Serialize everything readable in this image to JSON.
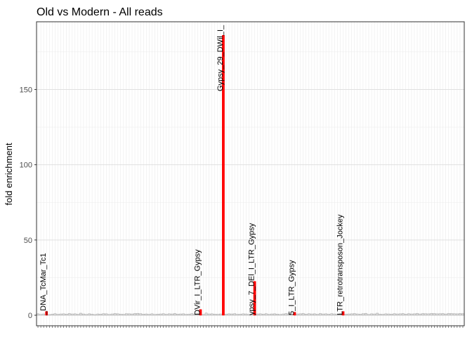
{
  "chart_data": {
    "type": "bar",
    "title": "Old vs Modern - All reads",
    "y_label": "fold enrichment",
    "categories": [
      null,
      null,
      null,
      null,
      null,
      null,
      null,
      null,
      null,
      null,
      null,
      null,
      null,
      null,
      null,
      null,
      null,
      null,
      null,
      null,
      null,
      null,
      null,
      null,
      null,
      null,
      null,
      null,
      null,
      null,
      null,
      null,
      null,
      null,
      null,
      null,
      null,
      null,
      null,
      null,
      null,
      null,
      null,
      null,
      null,
      null,
      null,
      null,
      null,
      null,
      null,
      null,
      null,
      null,
      null,
      null,
      null,
      null,
      null,
      null,
      null,
      null,
      null,
      null,
      null,
      null,
      null,
      null,
      null,
      null,
      null,
      null,
      null,
      null,
      null,
      null,
      null,
      null,
      null,
      null,
      null,
      null,
      null,
      null,
      null,
      null,
      null,
      null,
      null,
      null,
      null,
      null,
      null,
      null,
      null,
      null,
      null,
      null,
      null,
      null,
      null,
      null,
      null,
      null,
      null,
      null,
      null,
      null,
      null,
      null,
      null,
      null,
      null,
      null,
      null,
      null,
      null,
      null,
      null,
      null,
      null,
      null,
      null,
      null,
      null,
      null,
      null,
      null,
      null,
      null,
      null,
      null,
      null,
      null,
      null,
      null,
      null,
      null,
      null,
      null,
      null,
      null,
      null,
      null,
      null,
      null,
      null,
      null,
      null,
      null
    ],
    "values": [
      1.0,
      0.6,
      0.9,
      2.5,
      0.5,
      0.8,
      1.1,
      0.7,
      0.9,
      1.0,
      0.8,
      1.2,
      0.9,
      1.0,
      0.7,
      1.4,
      0.9,
      0.6,
      1.0,
      0.8,
      0.5,
      0.9,
      0.8,
      1.1,
      1.0,
      0.6,
      0.9,
      1.2,
      1.0,
      0.8,
      0.7,
      1.1,
      1.0,
      0.9,
      1.2,
      1.3,
      1.1,
      0.8,
      0.9,
      0.7,
      1.0,
      0.6,
      0.8,
      0.9,
      1.1,
      0.7,
      1.0,
      0.9,
      1.2,
      0.8,
      0.9,
      1.0,
      0.7,
      0.8,
      1.1,
      0.9,
      1.0,
      3.8,
      0.6,
      1.5,
      0.9,
      1.0,
      0.8,
      0.7,
      0.9,
      186,
      0.8,
      1.0,
      0.9,
      1.1,
      0.7,
      0.8,
      1.0,
      0.9,
      0.6,
      0.8,
      22.5,
      0.9,
      1.0,
      0.8,
      1.1,
      0.7,
      0.9,
      1.0,
      0.8,
      0.6,
      0.9,
      1.2,
      1.0,
      0.8,
      2.0,
      0.9,
      1.0,
      1.3,
      0.8,
      1.1,
      0.9,
      1.0,
      0.7,
      1.2,
      0.9,
      1.0,
      0.8,
      1.1,
      0.9,
      0.7,
      1.0,
      2.5,
      0.8,
      0.9,
      1.0,
      1.2,
      0.9,
      0.8,
      1.1,
      1.3,
      0.6,
      1.0,
      0.9,
      1.4,
      0.8,
      0.7,
      1.0,
      0.9,
      0.8,
      1.1,
      0.9,
      1.0,
      1.2,
      0.8,
      1.1,
      0.9,
      1.0,
      1.3,
      0.9,
      1.2,
      1.1,
      1.0,
      1.3,
      1.2,
      1.0,
      1.1,
      1.2,
      0.9,
      1.3,
      1.2,
      1.1,
      1.0,
      1.2,
      1.1
    ],
    "bar_labels": [
      null,
      null,
      null,
      "_DNA_TcMar_Tc1",
      null,
      null,
      null,
      null,
      null,
      null,
      null,
      null,
      null,
      null,
      null,
      null,
      null,
      null,
      null,
      null,
      null,
      null,
      null,
      null,
      null,
      null,
      null,
      null,
      null,
      null,
      null,
      null,
      null,
      null,
      null,
      null,
      null,
      null,
      null,
      null,
      null,
      null,
      null,
      null,
      null,
      null,
      null,
      null,
      null,
      null,
      null,
      null,
      null,
      null,
      null,
      null,
      null,
      "DVir_I_LTR_Gypsy",
      null,
      null,
      null,
      null,
      null,
      null,
      null,
      "Gypsy_29_DWil_I_",
      null,
      null,
      null,
      null,
      null,
      null,
      null,
      null,
      null,
      null,
      "ypsy_7_DEl_I_LTR_Gypsy",
      null,
      null,
      null,
      null,
      null,
      null,
      null,
      null,
      null,
      null,
      null,
      null,
      null,
      "5_I_LTR_Gypsy",
      null,
      null,
      null,
      null,
      null,
      null,
      null,
      null,
      null,
      null,
      null,
      null,
      null,
      null,
      null,
      null,
      "LTR_retrotransposon_Jockey",
      null,
      null,
      null,
      null,
      null,
      null,
      null,
      null,
      null,
      null,
      null,
      null,
      null,
      null,
      null,
      null,
      null,
      null,
      null,
      null,
      null,
      null,
      null,
      null,
      null,
      null,
      null,
      null,
      null,
      null,
      null,
      null,
      null,
      null,
      null,
      null,
      null,
      null,
      null,
      null,
      null,
      null
    ],
    "color": "#d9d9d9",
    "highlight_color": "#ff0000",
    "ylim": [
      -7,
      195
    ],
    "yticks": [
      0,
      50,
      100,
      150
    ],
    "grid": true
  }
}
